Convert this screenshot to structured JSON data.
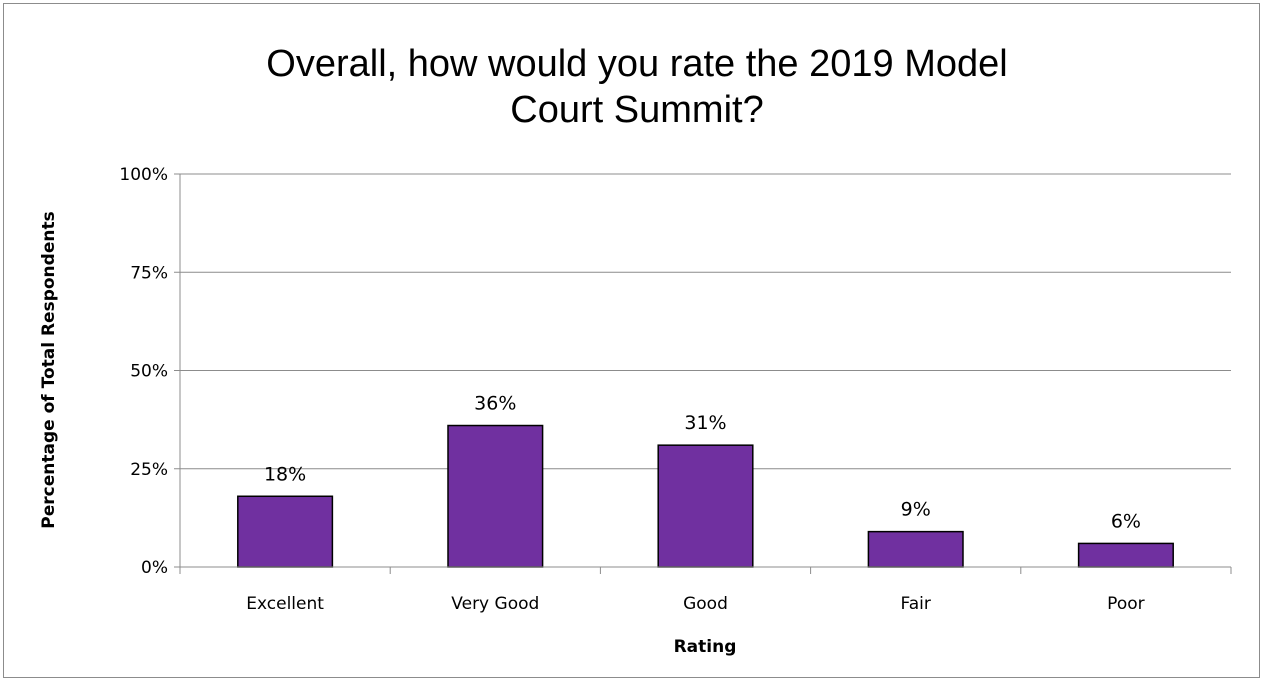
{
  "chart_data": {
    "type": "bar",
    "title_lines": [
      "Overall, how would you rate the 2019 Model",
      "Court Summit?"
    ],
    "xlabel": "Rating",
    "ylabel": "Percentage of Total Respondents",
    "categories": [
      "Excellent",
      "Very Good",
      "Good",
      "Fair",
      "Poor"
    ],
    "values": [
      18,
      36,
      31,
      9,
      6
    ],
    "data_labels": [
      "18%",
      "36%",
      "31%",
      "9%",
      "6%"
    ],
    "ylim": [
      0,
      100
    ],
    "yticks": [
      0,
      25,
      50,
      75,
      100
    ],
    "ytick_labels": [
      "0%",
      "25%",
      "50%",
      "75%",
      "100%"
    ],
    "grid": true,
    "legend": "none",
    "bar_color": "#7030a0",
    "bar_edge_color": "#000000",
    "grid_color": "#8c8c8c"
  }
}
